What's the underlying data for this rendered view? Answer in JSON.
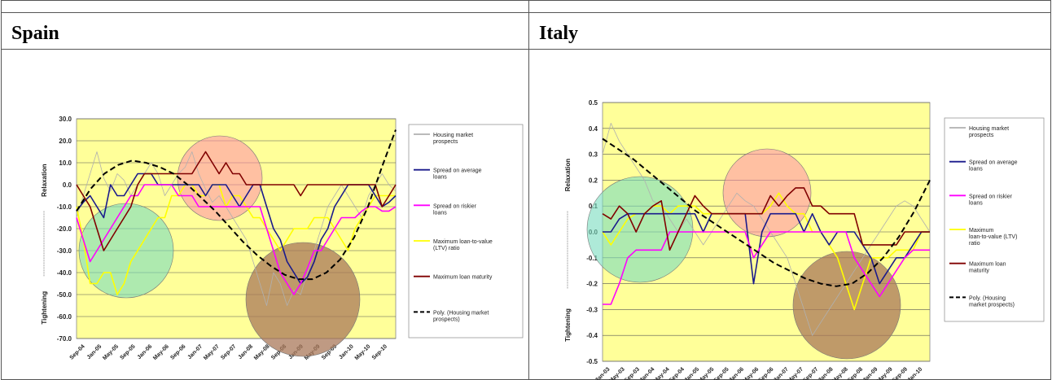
{
  "sections": [
    {
      "title": "Spain"
    },
    {
      "title": "Italy"
    }
  ],
  "chart_data": [
    {
      "type": "line",
      "title": "",
      "ylabel_top": "Relaxation",
      "ylabel_bottom": "Tightening",
      "ylim": [
        -70,
        30
      ],
      "yticks": [
        "30.0",
        "20.0",
        "10.0",
        "0.0",
        "-10.0",
        "-20.0",
        "-30.0",
        "-40.0",
        "-50.0",
        "-60.0",
        "-70.0"
      ],
      "xticks": [
        "Sep-04",
        "Jan-05",
        "May-05",
        "Sep-05",
        "Jan-06",
        "May-06",
        "Sep-06",
        "Jan-07",
        "May-07",
        "Sep-07",
        "Jan-08",
        "May-08",
        "Sep-08",
        "Jan-09",
        "May-09",
        "Sep-09",
        "Jan-10",
        "May-10",
        "Sep-10"
      ],
      "legend": [
        {
          "label": "Housing market prospects",
          "color": "#b0b0b0",
          "dash": false
        },
        {
          "label": "Spread on average loans",
          "color": "#1a1a8c",
          "dash": false
        },
        {
          "label": "Spread on riskier loans",
          "color": "#ff00ff",
          "dash": false
        },
        {
          "label": "Maximum loan-to-value (LTV) ratio",
          "color": "#ffff00",
          "dash": false
        },
        {
          "label": "Maximum loan maturity",
          "color": "#800000",
          "dash": false
        },
        {
          "label": "Poly. (Housing market prospects)",
          "color": "#000000",
          "dash": true
        }
      ],
      "series": [
        {
          "name": "Housing market prospects",
          "color": "#b0b0b0",
          "values": [
            -15,
            -5,
            5,
            15,
            3,
            -3,
            5,
            2,
            -5,
            0,
            5,
            10,
            5,
            -5,
            0,
            5,
            8,
            15,
            5,
            -2,
            -8,
            -5,
            -10,
            -15,
            -20,
            -25,
            -35,
            -45,
            -55,
            -40,
            -45,
            -55,
            -48,
            -50,
            -40,
            -30,
            -20,
            -10,
            -5,
            0,
            -5,
            -10,
            -15,
            -5,
            0,
            5,
            0,
            -3
          ]
        },
        {
          "name": "Spread on average loans",
          "color": "#1a1a8c",
          "values": [
            -12,
            -8,
            -5,
            -10,
            -15,
            0,
            -5,
            -5,
            0,
            5,
            5,
            5,
            0,
            0,
            0,
            0,
            0,
            0,
            0,
            -5,
            0,
            0,
            0,
            -5,
            -10,
            -5,
            0,
            0,
            -10,
            -20,
            -25,
            -35,
            -40,
            -45,
            -42,
            -35,
            -25,
            -20,
            -10,
            -5,
            0,
            0,
            0,
            0,
            -5,
            -10,
            -8,
            -5
          ]
        },
        {
          "name": "Spread on riskier loans",
          "color": "#ff00ff",
          "values": [
            -15,
            -25,
            -35,
            -30,
            -25,
            -20,
            -15,
            -10,
            -5,
            -5,
            0,
            0,
            0,
            0,
            0,
            -5,
            -5,
            -5,
            -10,
            -10,
            -10,
            -10,
            -10,
            -10,
            -10,
            -10,
            -10,
            -10,
            -20,
            -30,
            -40,
            -45,
            -50,
            -45,
            -38,
            -30,
            -30,
            -25,
            -20,
            -15,
            -15,
            -15,
            -12,
            -10,
            -10,
            -12,
            -12,
            -10
          ]
        },
        {
          "name": "Maximum loan-to-value (LTV) ratio",
          "color": "#ffff00",
          "values": [
            -10,
            -25,
            -45,
            -45,
            -40,
            -40,
            -50,
            -45,
            -35,
            -30,
            -25,
            -20,
            -15,
            -15,
            -5,
            -5,
            0,
            0,
            -5,
            -5,
            0,
            0,
            -10,
            -5,
            -5,
            -10,
            -15,
            -15,
            -20,
            -25,
            -30,
            -25,
            -20,
            -20,
            -20,
            -15,
            -15,
            -15,
            -20,
            -25,
            -30,
            -20,
            -15,
            -10,
            -5,
            -5,
            -5,
            -5
          ]
        },
        {
          "name": "Maximum loan maturity",
          "color": "#800000",
          "values": [
            0,
            -5,
            -10,
            -20,
            -30,
            -25,
            -20,
            -15,
            -10,
            0,
            5,
            5,
            5,
            5,
            5,
            5,
            5,
            5,
            10,
            15,
            10,
            5,
            10,
            5,
            5,
            0,
            0,
            0,
            0,
            0,
            0,
            0,
            0,
            -5,
            0,
            0,
            0,
            0,
            0,
            0,
            0,
            0,
            0,
            0,
            0,
            -10,
            -5,
            0
          ]
        },
        {
          "name": "Poly. (Housing market prospects)",
          "color": "#000000",
          "dash": true,
          "values": [
            -12,
            -2,
            5,
            9,
            11,
            10,
            8,
            5,
            0,
            -6,
            -12,
            -19,
            -26,
            -32,
            -37,
            -41,
            -43,
            -43,
            -40,
            -34,
            -24,
            -10,
            8,
            25
          ]
        }
      ]
    },
    {
      "type": "line",
      "title": "",
      "ylabel_top": "Relaxation",
      "ylabel_bottom": "Tightening",
      "ylim": [
        -0.5,
        0.5
      ],
      "yticks": [
        "0.5",
        "0.4",
        "0.3",
        "0.2",
        "0.1",
        "0.0",
        "-0.1",
        "-0.2",
        "-0.3",
        "-0.4",
        "-0.5"
      ],
      "xticks": [
        "Jan-03",
        "May-03",
        "Sep-03",
        "Jan-04",
        "May-04",
        "Sep-04",
        "Jan-05",
        "May-05",
        "Sep-05",
        "Jan-06",
        "May-06",
        "Sep-06",
        "Jan-07",
        "May-07",
        "Sep-07",
        "Jan-08",
        "May-08",
        "Sep-08",
        "Jan-09",
        "May-09",
        "Sep-09",
        "Jan-10"
      ],
      "legend": [
        {
          "label": "Housing market prospects",
          "color": "#b0b0b0",
          "dash": false
        },
        {
          "label": "Spread on average loans",
          "color": "#1a1a8c",
          "dash": false
        },
        {
          "label": "Spread on riskier loans",
          "color": "#ff00ff",
          "dash": false
        },
        {
          "label": "Maximum loan-to-value (LTV) ratio",
          "color": "#ffff00",
          "dash": false
        },
        {
          "label": "Maximum loan maturity",
          "color": "#800000",
          "dash": false
        },
        {
          "label": "Poly. (Housing market prospects)",
          "color": "#000000",
          "dash": true
        }
      ],
      "series": [
        {
          "name": "Housing market prospects",
          "color": "#b0b0b0",
          "values": [
            0.3,
            0.42,
            0.35,
            0.3,
            0.25,
            0.2,
            0.12,
            0.1,
            0.05,
            0,
            0.05,
            0,
            -0.05,
            0,
            0.05,
            0.1,
            0.15,
            0.12,
            0.1,
            0.05,
            0,
            -0.05,
            -0.1,
            -0.2,
            -0.3,
            -0.4,
            -0.35,
            -0.3,
            -0.25,
            -0.2,
            -0.15,
            -0.1,
            -0.05,
            0,
            0.05,
            0.1,
            0.12,
            0.1,
            0.05,
            0
          ]
        },
        {
          "name": "Spread on average loans",
          "color": "#1a1a8c",
          "values": [
            0,
            0,
            0.05,
            0.07,
            0.07,
            0.07,
            0.07,
            0.07,
            0.07,
            0.07,
            0.07,
            0.07,
            0,
            0.07,
            0.07,
            0.07,
            0.07,
            0.07,
            -0.2,
            0,
            0.07,
            0.07,
            0.07,
            0.07,
            0,
            0.07,
            0,
            -0.05,
            0,
            0,
            0,
            -0.05,
            -0.1,
            -0.2,
            -0.15,
            -0.1,
            -0.1,
            -0.05,
            0,
            0
          ]
        },
        {
          "name": "Spread on riskier loans",
          "color": "#ff00ff",
          "values": [
            -0.28,
            -0.28,
            -0.2,
            -0.1,
            -0.07,
            -0.07,
            -0.07,
            -0.07,
            0,
            0,
            0,
            0,
            0,
            0,
            0,
            0,
            0,
            0,
            -0.1,
            -0.05,
            0,
            0,
            0,
            0,
            0,
            0,
            0,
            0,
            0,
            0,
            -0.1,
            -0.15,
            -0.2,
            -0.25,
            -0.2,
            -0.15,
            -0.1,
            -0.07,
            -0.07,
            -0.07
          ]
        },
        {
          "name": "Maximum loan-to-value (LTV) ratio",
          "color": "#ffff00",
          "values": [
            0,
            -0.05,
            0,
            0.05,
            0.07,
            0.07,
            0.1,
            0.1,
            0.07,
            0.1,
            0.1,
            0.1,
            0.07,
            0.07,
            0.07,
            0.07,
            0.07,
            0.07,
            0.07,
            0.07,
            0.1,
            0.15,
            0.1,
            0.07,
            0.07,
            0,
            0,
            -0.05,
            -0.1,
            -0.2,
            -0.3,
            -0.2,
            -0.1,
            -0.1,
            -0.1,
            -0.07,
            -0.07,
            -0.07,
            0,
            0
          ]
        },
        {
          "name": "Maximum loan maturity",
          "color": "#800000",
          "values": [
            0.07,
            0.05,
            0.1,
            0.07,
            0,
            0.07,
            0.1,
            0.12,
            -0.07,
            0,
            0.07,
            0.14,
            0.1,
            0.07,
            0.07,
            0.07,
            0.07,
            0.07,
            0.07,
            0.07,
            0.14,
            0.1,
            0.14,
            0.17,
            0.17,
            0.1,
            0.1,
            0.07,
            0.07,
            0.07,
            0.07,
            -0.05,
            -0.05,
            -0.05,
            -0.05,
            -0.05,
            0,
            0,
            0,
            0
          ]
        },
        {
          "name": "Poly. (Housing market prospects)",
          "color": "#000000",
          "dash": true,
          "values": [
            0.36,
            0.32,
            0.28,
            0.23,
            0.18,
            0.13,
            0.08,
            0.04,
            0,
            -0.04,
            -0.08,
            -0.12,
            -0.15,
            -0.18,
            -0.2,
            -0.21,
            -0.2,
            -0.16,
            -0.1,
            -0.02,
            0.08,
            0.2
          ]
        }
      ]
    }
  ]
}
